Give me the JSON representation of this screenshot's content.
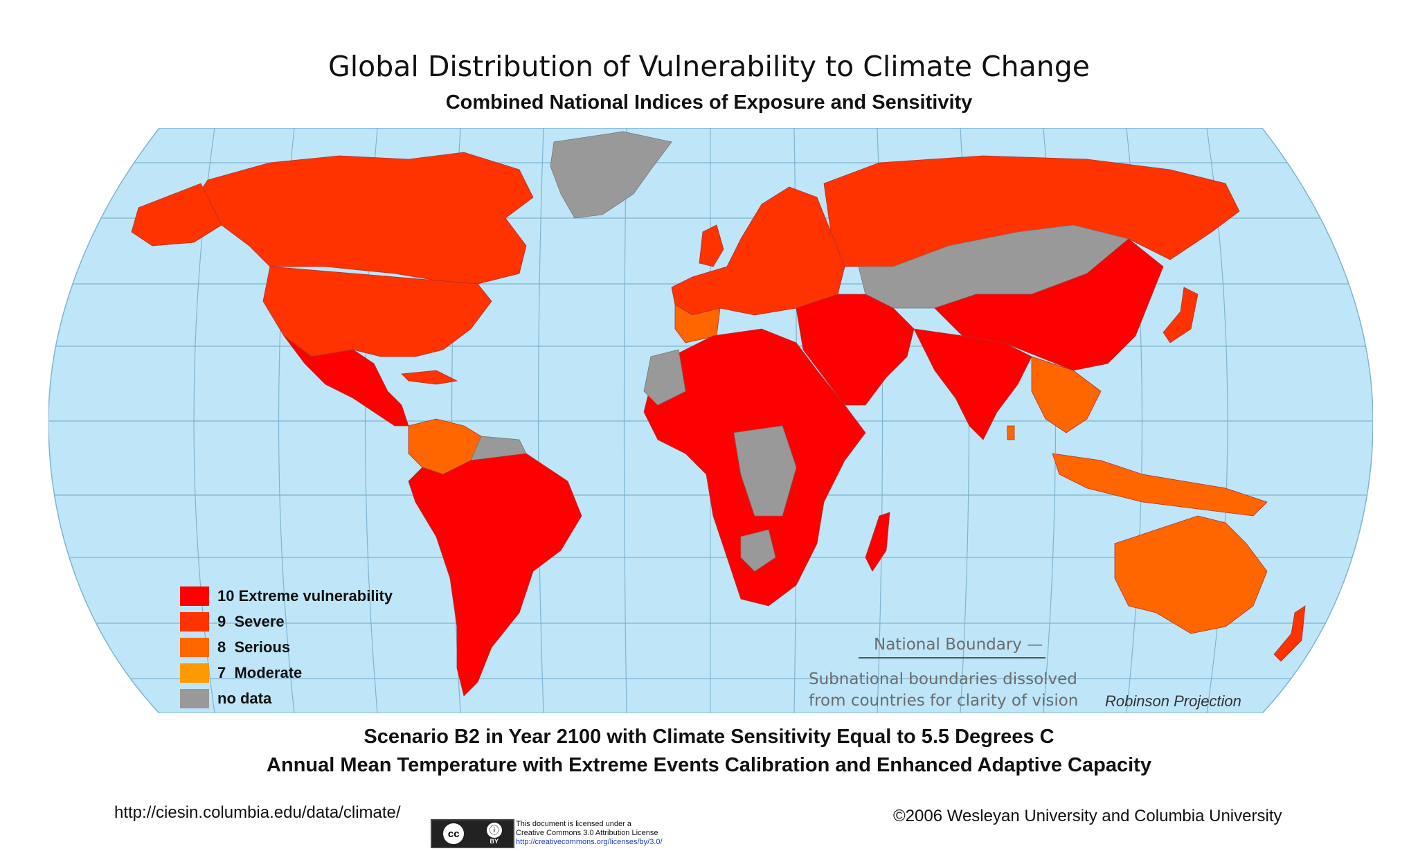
{
  "title": "Global Distribution of Vulnerability to Climate Change",
  "subtitle": "Combined National Indices of Exposure and Sensitivity",
  "legend": [
    {
      "label": "10 Extreme vulnerability",
      "color": "#ff0000"
    },
    {
      "label": "9  Severe",
      "color": "#ff3300"
    },
    {
      "label": "8  Serious",
      "color": "#ff6600"
    },
    {
      "label": "7  Moderate",
      "color": "#ff9900"
    },
    {
      "label": "no data",
      "color": "#999999"
    }
  ],
  "map_notes": {
    "national_boundary": "National Boundary",
    "subnational_line1": "Subnational boundaries dissolved",
    "subnational_line2": "from countries for clarity of vision",
    "projection": "Robinson Projection"
  },
  "scenario_line1": "Scenario B2 in Year 2100 with Climate Sensitivity Equal to 5.5 Degrees C",
  "scenario_line2": "Annual Mean Temperature with Extreme Events Calibration and Enhanced Adaptive Capacity",
  "footer": {
    "url": "http://ciesin.columbia.edu/data/climate/",
    "copyright": "©2006 Wesleyan University and Columbia University",
    "license_line1": "This document is licensed under a",
    "license_line2": "Creative Commons 3.0 Attribution License",
    "license_url": "http://creativecommons.org/licenses/by/3.0/",
    "cc_badge": "cc",
    "by_badge": "BY"
  },
  "colors": {
    "ocean": "#bfe6f8",
    "graticule": "#7fb3cf",
    "extreme": "#ff0000",
    "severe": "#ff3300",
    "serious": "#ff6600",
    "moderate": "#ff9900",
    "nodata": "#999999"
  }
}
